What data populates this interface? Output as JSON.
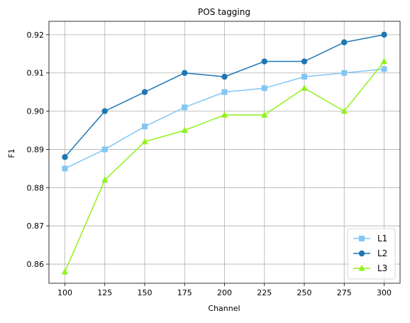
{
  "chart_data": {
    "type": "line",
    "title": "POS tagging",
    "xlabel": "Channel",
    "ylabel": "F1",
    "x": [
      100,
      125,
      150,
      175,
      200,
      225,
      250,
      275,
      300
    ],
    "xlim": [
      90,
      310
    ],
    "ylim": [
      0.855,
      0.9235
    ],
    "xticks": [
      "100",
      "125",
      "150",
      "175",
      "200",
      "225",
      "250",
      "275",
      "300"
    ],
    "yticks": [
      "0.86",
      "0.87",
      "0.88",
      "0.89",
      "0.90",
      "0.91",
      "0.92"
    ],
    "grid": true,
    "legend_position": "lower-right",
    "series": [
      {
        "name": "L1",
        "marker": "square",
        "color": "#82c6f4",
        "values": [
          0.885,
          0.89,
          0.896,
          0.901,
          0.905,
          0.906,
          0.909,
          0.91,
          0.911
        ]
      },
      {
        "name": "L2",
        "marker": "circle",
        "color": "#1f77b4",
        "values": [
          0.888,
          0.9,
          0.905,
          0.91,
          0.909,
          0.913,
          0.913,
          0.918,
          0.92
        ]
      },
      {
        "name": "L3",
        "marker": "triangle",
        "color": "#8ff21a",
        "values": [
          0.858,
          0.882,
          0.892,
          0.895,
          0.899,
          0.899,
          0.906,
          0.9,
          0.913
        ]
      }
    ]
  }
}
